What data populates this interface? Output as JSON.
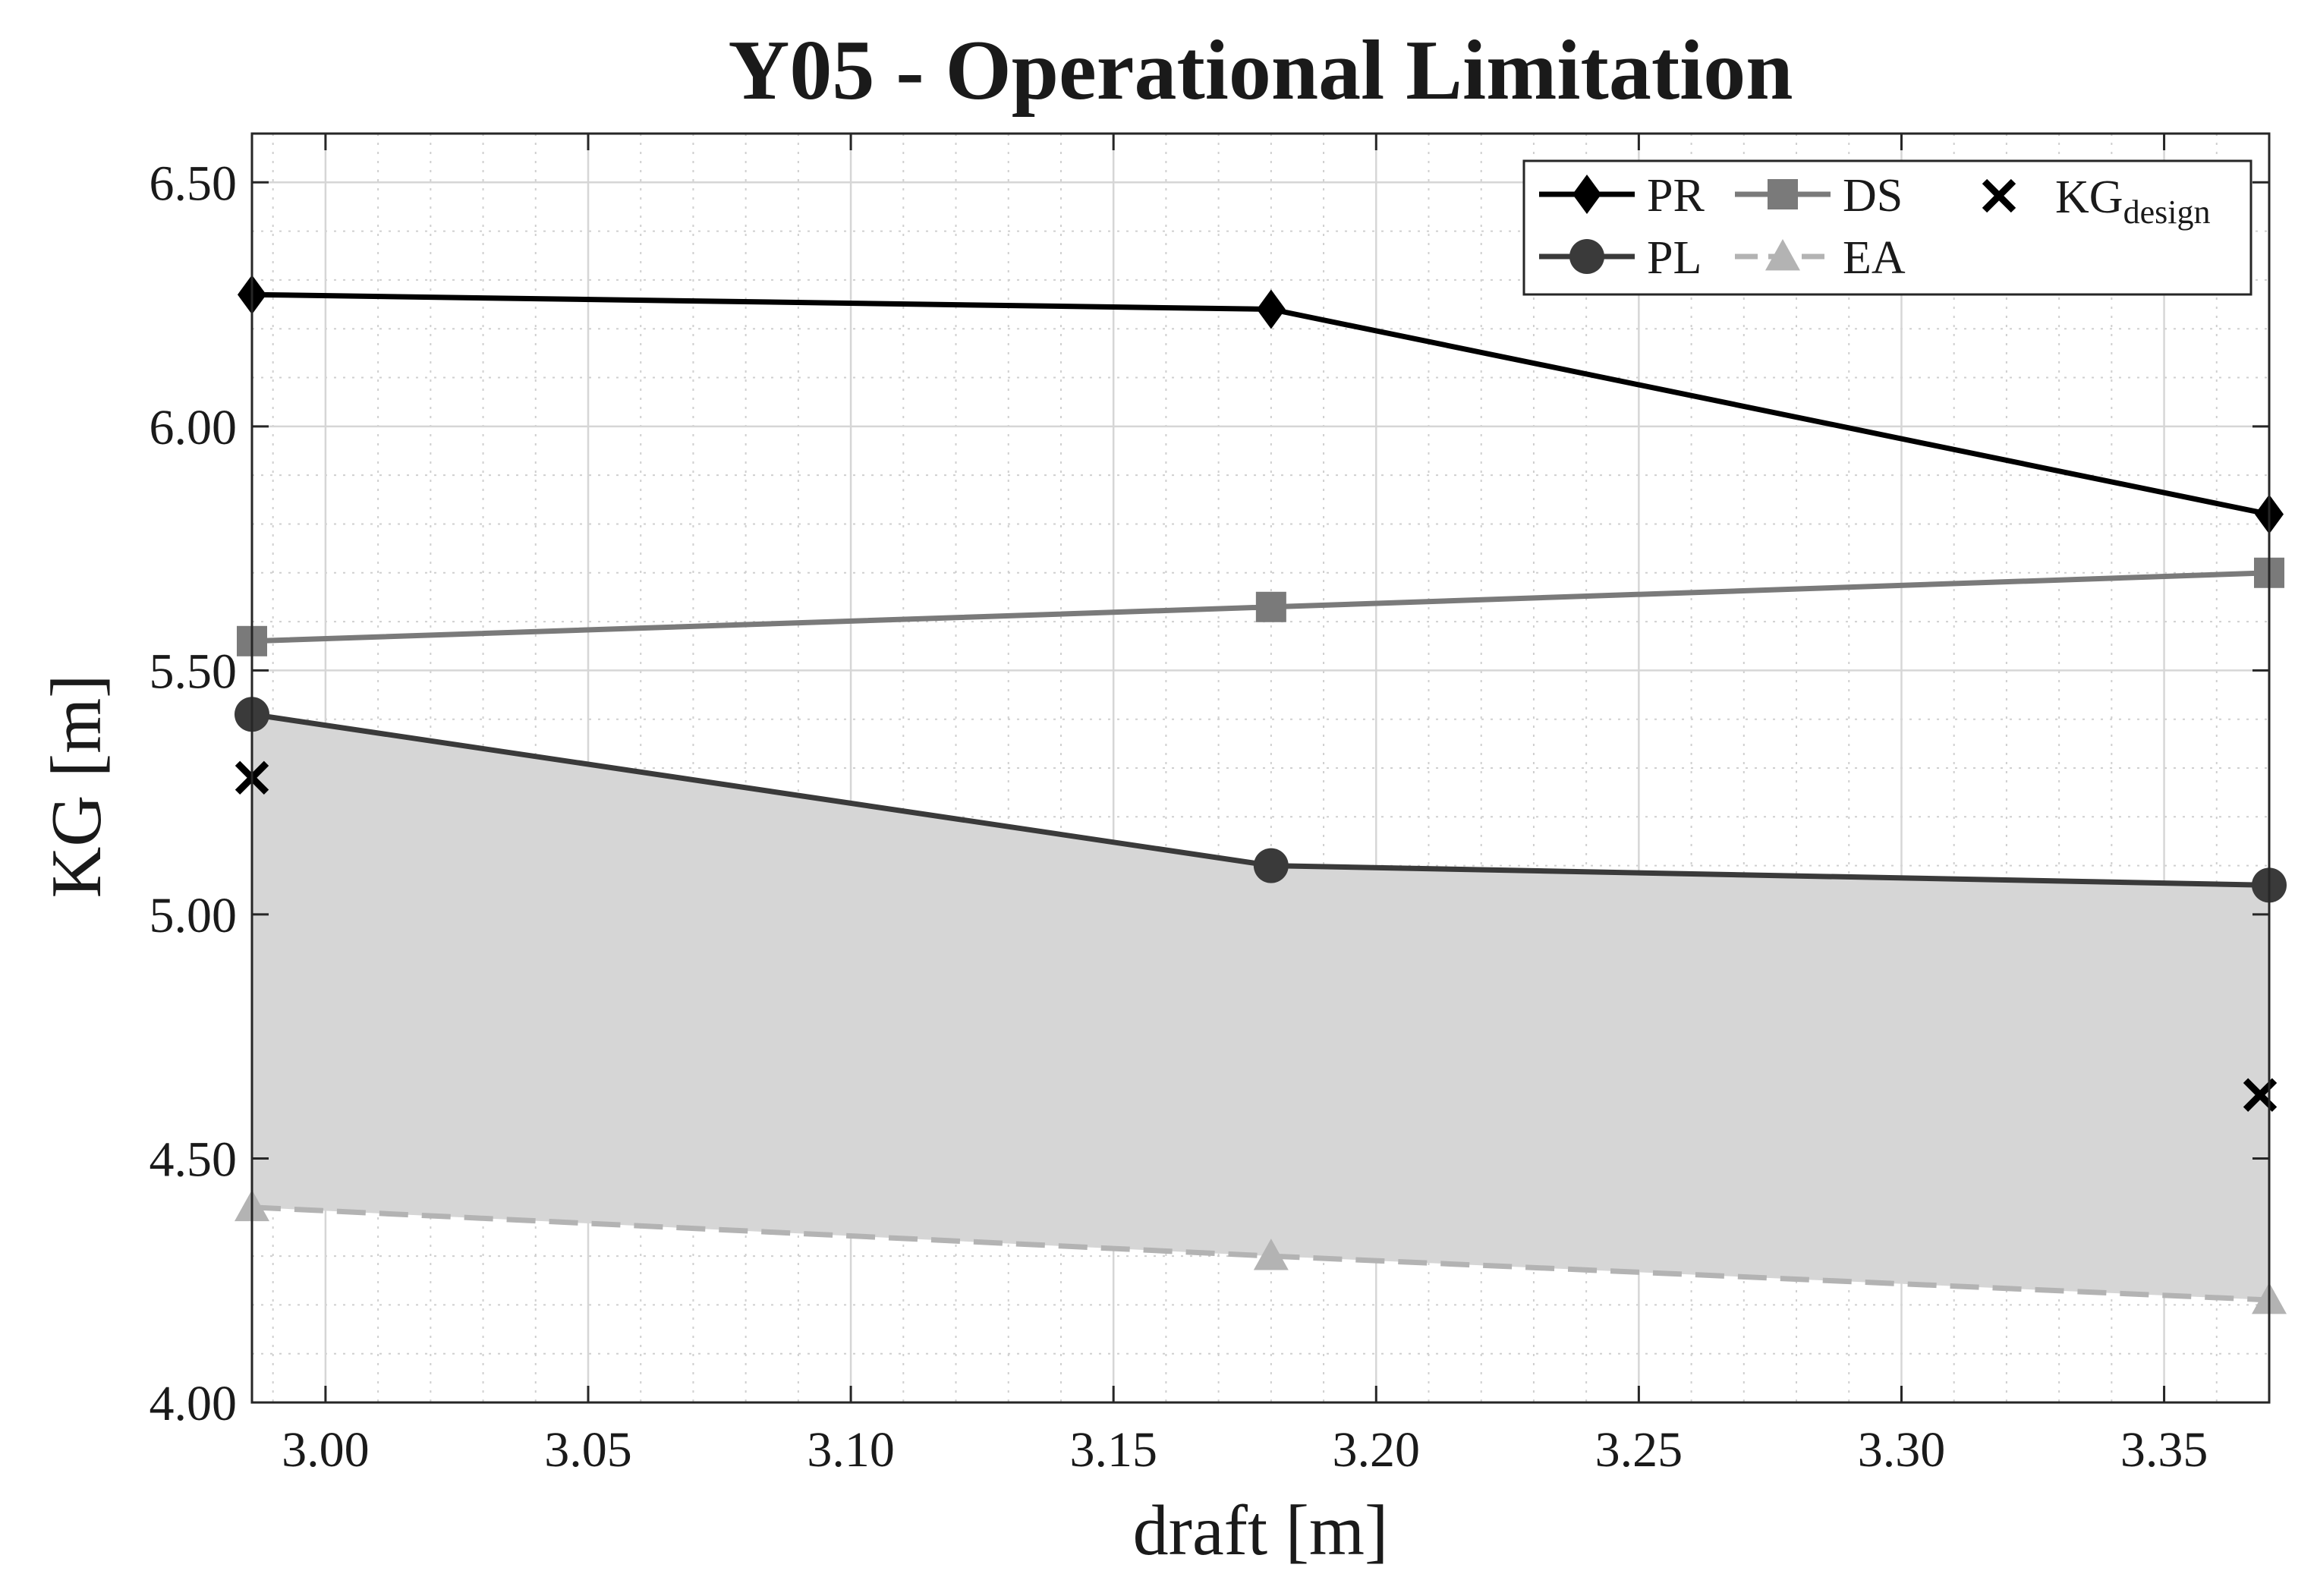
{
  "chart_data": {
    "type": "line",
    "title": "Y05 - Operational Limitation",
    "xlabel": "draft [m]",
    "ylabel": "KG [m]",
    "xlim": [
      2.986,
      3.37
    ],
    "ylim": [
      4.0,
      6.6
    ],
    "x_ticks": [
      "3.00",
      "3.05",
      "3.10",
      "3.15",
      "3.20",
      "3.25",
      "3.30",
      "3.35"
    ],
    "y_ticks": [
      "4.00",
      "4.50",
      "5.00",
      "5.50",
      "6.00",
      "6.50"
    ],
    "grid": true,
    "legend_position": "top-right",
    "shaded_region": "between PL and EA",
    "x": [
      2.986,
      3.18,
      3.37
    ],
    "series": [
      {
        "name": "PR",
        "marker": "diamond",
        "style": "solid",
        "color": "#000000",
        "values": [
          6.27,
          6.24,
          5.82
        ]
      },
      {
        "name": "DS",
        "marker": "square",
        "style": "solid",
        "color": "#7a7a7a",
        "values": [
          5.56,
          5.63,
          5.7
        ]
      },
      {
        "name": "PL",
        "marker": "circle",
        "style": "solid",
        "color": "#3a3a3a",
        "values": [
          5.41,
          5.1,
          5.06
        ]
      },
      {
        "name": "EA",
        "marker": "triangle",
        "style": "dashed",
        "color": "#b3b3b3",
        "values": [
          4.4,
          4.3,
          4.21
        ]
      }
    ],
    "kg_design": {
      "name": "KG",
      "subscript": "design",
      "marker": "x",
      "color": "#000000",
      "points": [
        {
          "x": 2.986,
          "y": 5.28
        },
        {
          "x": 3.37,
          "y": 4.63
        }
      ]
    }
  }
}
